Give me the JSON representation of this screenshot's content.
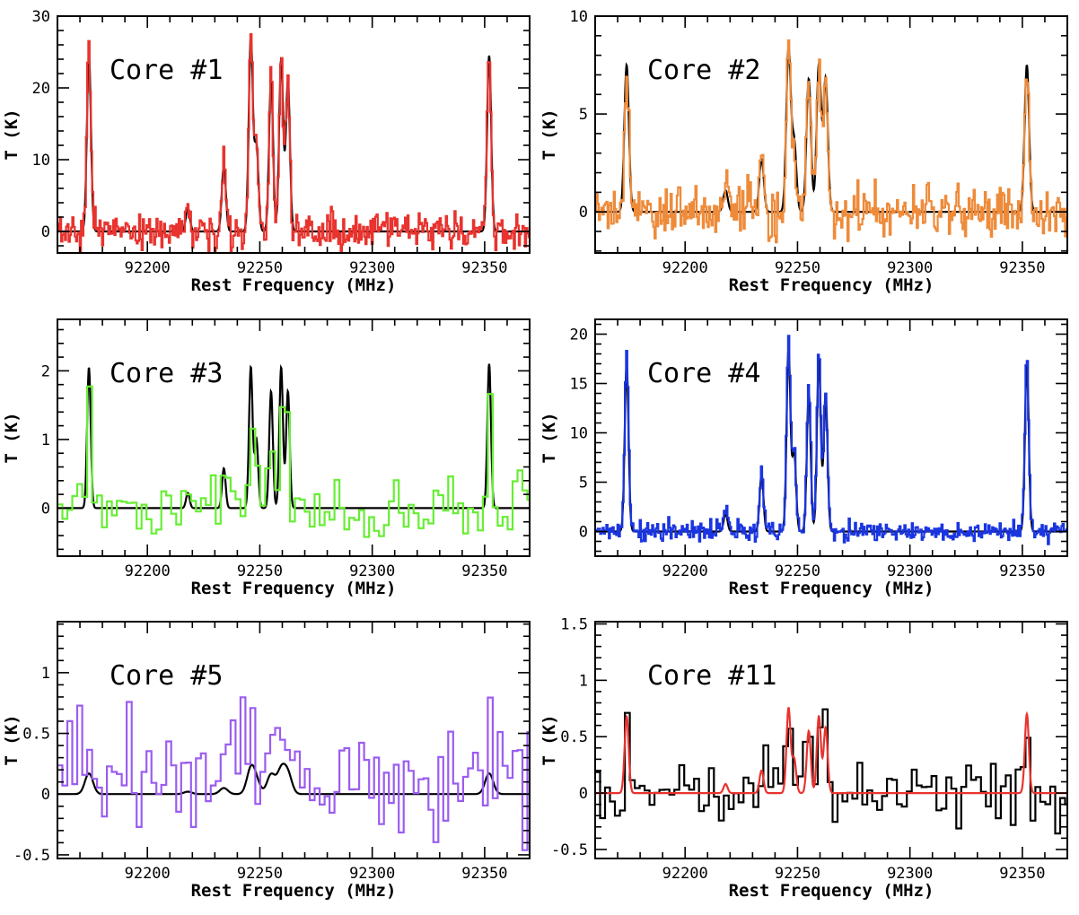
{
  "figure": {
    "panels": [
      {
        "title": "Core #1",
        "xlabel": "Rest Frequency (MHz)",
        "ylabel": "T (K)",
        "x_ticks": [
          "92200",
          "92250",
          "92300",
          "92350"
        ],
        "y_ticks": [
          "0",
          "10",
          "20",
          "30"
        ]
      },
      {
        "title": "Core #2",
        "xlabel": "Rest Frequency (MHz)",
        "ylabel": "T (K)",
        "x_ticks": [
          "92200",
          "92250",
          "92300",
          "92350"
        ],
        "y_ticks": [
          "0",
          "5",
          "10"
        ]
      },
      {
        "title": "Core #3",
        "xlabel": "Rest Frequency (MHz)",
        "ylabel": "T (K)",
        "x_ticks": [
          "92200",
          "92250",
          "92300",
          "92350"
        ],
        "y_ticks": [
          "0",
          "1",
          "2"
        ]
      },
      {
        "title": "Core #4",
        "xlabel": "Rest Frequency (MHz)",
        "ylabel": "T (K)",
        "x_ticks": [
          "92200",
          "92250",
          "92300",
          "92350"
        ],
        "y_ticks": [
          "0",
          "5",
          "10",
          "15",
          "20"
        ]
      },
      {
        "title": "Core #5",
        "xlabel": "Rest Frequency (MHz)",
        "ylabel": "T (K)",
        "x_ticks": [
          "92200",
          "92250",
          "92300",
          "92350"
        ],
        "y_ticks": [
          "-0.5",
          "0",
          "0.5",
          "1"
        ]
      },
      {
        "title": "Core #11",
        "xlabel": "Rest Frequency (MHz)",
        "ylabel": "T (K)",
        "x_ticks": [
          "92200",
          "92250",
          "92300",
          "92350"
        ],
        "y_ticks": [
          "-0.5",
          "0",
          "0.5",
          "1",
          "1.5"
        ]
      }
    ]
  },
  "chart_data": [
    {
      "type": "line",
      "title": "Core #1",
      "xlabel": "Rest Frequency (MHz)",
      "ylabel": "T (K)",
      "xlim": [
        92160,
        92370
      ],
      "ylim": [
        -3,
        30
      ],
      "x_ticks": [
        92200,
        92250,
        92300,
        92350
      ],
      "y_ticks": [
        0,
        10,
        20,
        30
      ],
      "lines": [
        {
          "center": 92174,
          "amp": 24.5
        },
        {
          "center": 92218,
          "amp": 3.3
        },
        {
          "center": 92234,
          "amp": 9.2
        },
        {
          "center": 92246,
          "amp": 27
        },
        {
          "center": 92248.5,
          "amp": 12
        },
        {
          "center": 92255,
          "amp": 21
        },
        {
          "center": 92259.5,
          "amp": 24
        },
        {
          "center": 92262.5,
          "amp": 21
        },
        {
          "center": 92352,
          "amp": 24.5
        }
      ],
      "line_width": 0.9,
      "series": [
        {
          "role": "model",
          "color": "#000000",
          "step": false
        },
        {
          "role": "observed",
          "color": "#e8332e",
          "step": true,
          "channel_width": 0.55,
          "noise_rms": 1.2,
          "scale": 1.02
        }
      ]
    },
    {
      "type": "line",
      "title": "Core #2",
      "xlabel": "Rest Frequency (MHz)",
      "ylabel": "T (K)",
      "xlim": [
        92160,
        92370
      ],
      "ylim": [
        -2.1,
        10
      ],
      "x_ticks": [
        92200,
        92250,
        92300,
        92350
      ],
      "y_ticks": [
        0,
        5,
        10
      ],
      "lines": [
        {
          "center": 92174,
          "amp": 7.5
        },
        {
          "center": 92218,
          "amp": 1.1
        },
        {
          "center": 92234,
          "amp": 2.7
        },
        {
          "center": 92246,
          "amp": 8.3
        },
        {
          "center": 92248.5,
          "amp": 3.5
        },
        {
          "center": 92255,
          "amp": 6.8
        },
        {
          "center": 92259.5,
          "amp": 7.5
        },
        {
          "center": 92262.5,
          "amp": 6.8
        },
        {
          "center": 92352,
          "amp": 7.5
        }
      ],
      "line_width": 1.0,
      "series": [
        {
          "role": "model",
          "color": "#000000",
          "step": false
        },
        {
          "role": "observed",
          "color": "#ee8b3a",
          "step": true,
          "channel_width": 0.55,
          "noise_rms": 0.65,
          "scale": 0.98
        }
      ]
    },
    {
      "type": "line",
      "title": "Core #3",
      "xlabel": "Rest Frequency (MHz)",
      "ylabel": "T (K)",
      "xlim": [
        92160,
        92370
      ],
      "ylim": [
        -0.7,
        2.75
      ],
      "x_ticks": [
        92200,
        92250,
        92300,
        92350
      ],
      "y_ticks": [
        0,
        1,
        2
      ],
      "lines": [
        {
          "center": 92174,
          "amp": 2.05
        },
        {
          "center": 92218,
          "amp": 0.22
        },
        {
          "center": 92234,
          "amp": 0.58
        },
        {
          "center": 92246,
          "amp": 2.05
        },
        {
          "center": 92248.5,
          "amp": 1.0
        },
        {
          "center": 92255,
          "amp": 1.7
        },
        {
          "center": 92259.5,
          "amp": 2.05
        },
        {
          "center": 92262.5,
          "amp": 1.7
        },
        {
          "center": 92352,
          "amp": 2.1
        }
      ],
      "line_width": 0.8,
      "series": [
        {
          "role": "model",
          "color": "#000000",
          "step": false
        },
        {
          "role": "observed",
          "color": "#66ee33",
          "step": true,
          "channel_width": 2.2,
          "noise_rms": 0.22,
          "scale": 0.95
        }
      ]
    },
    {
      "type": "line",
      "title": "Core #4",
      "xlabel": "Rest Frequency (MHz)",
      "ylabel": "T (K)",
      "xlim": [
        92160,
        92370
      ],
      "ylim": [
        -2.5,
        21.5
      ],
      "x_ticks": [
        92200,
        92250,
        92300,
        92350
      ],
      "y_ticks": [
        0,
        5,
        10,
        15,
        20
      ],
      "lines": [
        {
          "center": 92174,
          "amp": 17
        },
        {
          "center": 92218,
          "amp": 1.8
        },
        {
          "center": 92234,
          "amp": 5.8
        },
        {
          "center": 92246,
          "amp": 18.5
        },
        {
          "center": 92248.5,
          "amp": 8
        },
        {
          "center": 92255,
          "amp": 14
        },
        {
          "center": 92259.5,
          "amp": 17.5
        },
        {
          "center": 92262.5,
          "amp": 14
        },
        {
          "center": 92352,
          "amp": 17
        }
      ],
      "line_width": 0.85,
      "series": [
        {
          "role": "model",
          "color": "#000000",
          "step": false
        },
        {
          "role": "observed",
          "color": "#1a35e0",
          "step": true,
          "channel_width": 0.55,
          "noise_rms": 0.5,
          "scale": 1.08
        }
      ]
    },
    {
      "type": "line",
      "title": "Core #5",
      "xlabel": "Rest Frequency (MHz)",
      "ylabel": "T (K)",
      "xlim": [
        92160,
        92370
      ],
      "ylim": [
        -0.53,
        1.42
      ],
      "x_ticks": [
        92200,
        92250,
        92300,
        92350
      ],
      "y_ticks": [
        -0.5,
        0,
        0.5,
        1
      ],
      "lines": [
        {
          "center": 92174,
          "amp": 0.17
        },
        {
          "center": 92218,
          "amp": 0.02
        },
        {
          "center": 92234,
          "amp": 0.05
        },
        {
          "center": 92246,
          "amp": 0.2
        },
        {
          "center": 92248.5,
          "amp": 0.09
        },
        {
          "center": 92255,
          "amp": 0.16
        },
        {
          "center": 92259.5,
          "amp": 0.19
        },
        {
          "center": 92262.5,
          "amp": 0.16
        },
        {
          "center": 92352,
          "amp": 0.17
        }
      ],
      "line_width": 1.8,
      "series": [
        {
          "role": "model",
          "color": "#000000",
          "step": false
        },
        {
          "role": "observed",
          "color": "#9b5cf0",
          "step": true,
          "channel_width": 2.2,
          "noise_rms": 0.26,
          "scale": 1.6,
          "offset": 0.12
        }
      ]
    },
    {
      "type": "line",
      "title": "Core #11",
      "xlabel": "Rest Frequency (MHz)",
      "ylabel": "T (K)",
      "xlim": [
        92160,
        92370
      ],
      "ylim": [
        -0.58,
        1.52
      ],
      "x_ticks": [
        92200,
        92250,
        92300,
        92350
      ],
      "y_ticks": [
        -0.5,
        0,
        0.5,
        1,
        1.5
      ],
      "lines": [
        {
          "center": 92174,
          "amp": 0.68
        },
        {
          "center": 92218,
          "amp": 0.08
        },
        {
          "center": 92234,
          "amp": 0.2
        },
        {
          "center": 92246,
          "amp": 0.75
        },
        {
          "center": 92248.5,
          "amp": 0.3
        },
        {
          "center": 92255,
          "amp": 0.55
        },
        {
          "center": 92259.5,
          "amp": 0.68
        },
        {
          "center": 92262.5,
          "amp": 0.58
        },
        {
          "center": 92352,
          "amp": 0.7
        }
      ],
      "line_width": 0.9,
      "series": [
        {
          "role": "observed",
          "color": "#000000",
          "step": true,
          "channel_width": 2.2,
          "noise_rms": 0.15,
          "scale": 1.05
        },
        {
          "role": "model",
          "color": "#e8332e",
          "step": false
        }
      ]
    }
  ]
}
